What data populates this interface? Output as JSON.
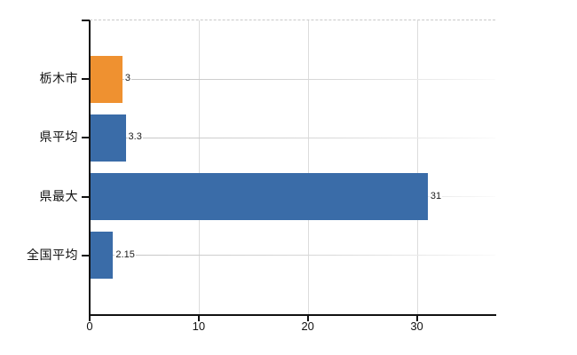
{
  "chart_data": {
    "type": "bar",
    "orientation": "horizontal",
    "title": "",
    "xlabel": "",
    "ylabel": "",
    "categories": [
      "栃木市",
      "県平均",
      "県最大",
      "全国平均"
    ],
    "values": [
      3,
      3.3,
      31,
      2.15
    ],
    "value_labels": [
      "3",
      "3.3",
      "31",
      "2.15"
    ],
    "bar_colors": [
      "#ef9130",
      "#3a6ca8",
      "#3a6ca8",
      "#3a6ca8"
    ],
    "xlim": [
      0,
      37.2
    ],
    "xticks": [
      0,
      10,
      20,
      30
    ],
    "xtick_labels": [
      "0",
      "10",
      "20",
      "30"
    ],
    "grid": "on",
    "legend": "none"
  },
  "colors": {
    "background": "#ffffff",
    "axis": "#111111",
    "vertical_gridline": "#dcdcdc",
    "horizontal_gridline": "#c9c9c9",
    "bar_orange": "#ef9130",
    "bar_blue": "#3a6ca8",
    "text": "#111111"
  }
}
